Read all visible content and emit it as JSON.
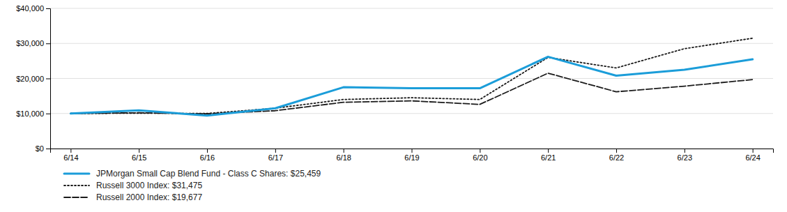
{
  "chart_data": {
    "type": "line",
    "categories": [
      "6/14",
      "6/15",
      "6/16",
      "6/17",
      "6/18",
      "6/19",
      "6/20",
      "6/21",
      "6/22",
      "6/23",
      "6/24"
    ],
    "series": [
      {
        "name": "JPMorgan Small Cap Blend Fund - Class C Shares: $25,459",
        "color": "#1B9DD9",
        "line_style": "solid",
        "values": [
          10000,
          10900,
          9400,
          11500,
          17500,
          17200,
          17200,
          26200,
          20800,
          22500,
          25459
        ]
      },
      {
        "name": "Russell 3000 Index: $31,475",
        "color": "#1a1a1a",
        "line_style": "dotted",
        "values": [
          10000,
          10100,
          10000,
          11500,
          14000,
          14500,
          14000,
          26000,
          23000,
          28500,
          31475
        ]
      },
      {
        "name": "Russell 2000 Index: $19,677",
        "color": "#1a1a1a",
        "line_style": "dashed",
        "values": [
          10000,
          10200,
          9900,
          10800,
          13200,
          13600,
          12600,
          21500,
          16200,
          17800,
          19677
        ]
      }
    ],
    "ylim": [
      0,
      40000
    ],
    "yticks": [
      {
        "value": 0,
        "label": "$0"
      },
      {
        "value": 10000,
        "label": "$10,000"
      },
      {
        "value": 20000,
        "label": "$20,000"
      },
      {
        "value": 30000,
        "label": "$30,000"
      },
      {
        "value": 40000,
        "label": "$40,000"
      }
    ],
    "grid": true,
    "legend": "bottom"
  }
}
